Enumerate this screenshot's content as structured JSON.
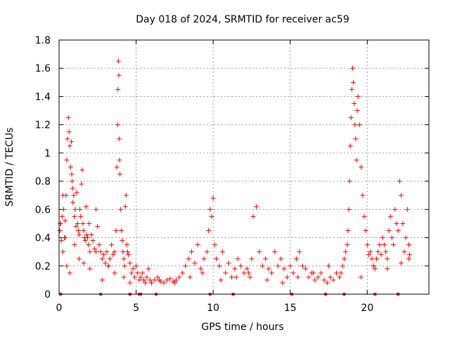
{
  "chart_data": {
    "type": "scatter",
    "title": "Day 018 of 2024, SRMTID for receiver ac59",
    "xlabel": "GPS time / hours",
    "ylabel": "SRMTID / TECUs",
    "xlim": [
      0,
      24
    ],
    "ylim": [
      0,
      1.8
    ],
    "xticks": [
      0,
      5,
      10,
      15,
      20
    ],
    "yticks": [
      0,
      0.2,
      0.4,
      0.6,
      0.8,
      1,
      1.2,
      1.4,
      1.6,
      1.8
    ],
    "ytick_labels": [
      "0",
      "0.2",
      "0.4",
      "0.6",
      "0.8",
      "1",
      "1.2",
      "1.4",
      "1.6",
      "1.8"
    ],
    "grid": true,
    "marker": "+",
    "color": "#ff0000",
    "series": [
      {
        "name": "SRMTID",
        "x": [
          0.05,
          0.1,
          0.15,
          0.2,
          0.25,
          0.3,
          0.35,
          0.4,
          0.45,
          0.5,
          0.55,
          0.6,
          0.65,
          0.7,
          0.75,
          0.8,
          0.82,
          0.85,
          0.88,
          0.9,
          0.95,
          1.0,
          1.05,
          1.1,
          1.15,
          1.2,
          1.25,
          1.3,
          1.35,
          1.4,
          1.45,
          1.5,
          1.55,
          1.6,
          1.65,
          1.7,
          1.75,
          1.8,
          1.85,
          1.9,
          1.95,
          2.0,
          2.1,
          2.2,
          2.3,
          2.4,
          2.5,
          2.6,
          2.7,
          2.8,
          2.9,
          3.0,
          3.1,
          3.2,
          3.3,
          3.4,
          3.5,
          3.6,
          3.7,
          3.75,
          3.8,
          3.82,
          3.85,
          3.88,
          3.9,
          3.92,
          3.95,
          4.0,
          4.05,
          4.1,
          4.15,
          4.2,
          4.25,
          4.3,
          4.35,
          4.4,
          4.45,
          4.5,
          4.6,
          4.7,
          4.8,
          4.9,
          5.0,
          5.1,
          5.2,
          5.3,
          5.4,
          5.5,
          5.6,
          5.7,
          5.8,
          5.9,
          6.0,
          6.2,
          6.4,
          6.6,
          6.8,
          7.0,
          7.2,
          7.4,
          7.6,
          7.8,
          8.0,
          8.2,
          8.4,
          8.6,
          8.8,
          9.0,
          9.2,
          9.4,
          9.6,
          9.7,
          9.8,
          9.9,
          10.0,
          10.1,
          10.2,
          10.4,
          10.6,
          10.8,
          11.0,
          11.2,
          11.4,
          11.6,
          11.8,
          12.0,
          12.2,
          12.4,
          12.5,
          12.6,
          12.8,
          13.0,
          13.2,
          13.4,
          13.6,
          13.8,
          14.0,
          14.2,
          14.4,
          14.6,
          14.8,
          15.0,
          15.2,
          15.4,
          15.6,
          15.8,
          16.0,
          16.2,
          16.4,
          16.6,
          16.8,
          17.0,
          17.2,
          17.4,
          17.6,
          17.8,
          18.0,
          18.2,
          18.4,
          18.5,
          18.6,
          18.7,
          18.75,
          18.8,
          18.85,
          18.9,
          18.95,
          19.0,
          19.05,
          19.1,
          19.15,
          19.2,
          19.25,
          19.3,
          19.35,
          19.4,
          19.5,
          19.6,
          19.7,
          19.8,
          19.9,
          20.0,
          20.1,
          20.2,
          20.3,
          20.4,
          20.5,
          20.6,
          20.7,
          20.8,
          20.9,
          21.0,
          21.1,
          21.2,
          21.3,
          21.4,
          21.5,
          21.6,
          21.7,
          21.8,
          21.9,
          22.0,
          22.1,
          22.2,
          22.3,
          22.4,
          22.5,
          22.6,
          22.7,
          22.75,
          0.08,
          0.25,
          0.4,
          0.5,
          0.7,
          1.0,
          1.3,
          1.6,
          2.0,
          2.4,
          2.8,
          3.2,
          3.6,
          4.2,
          4.6,
          5.5,
          6.5,
          7.5,
          8.5,
          9.3,
          10.5,
          11.5,
          12.3,
          13.5,
          14.5,
          15.5,
          16.5,
          17.5,
          18.3,
          19.6,
          20.4,
          21.3,
          22.2,
          22.7
        ],
        "y": [
          0.45,
          0.5,
          0.38,
          0.55,
          0.3,
          0.6,
          0.4,
          0.52,
          0.7,
          0.95,
          1.1,
          1.25,
          1.15,
          1.05,
          0.9,
          1.08,
          0.85,
          0.8,
          0.75,
          0.65,
          0.7,
          0.55,
          0.6,
          0.48,
          0.72,
          0.5,
          0.45,
          0.42,
          0.6,
          0.55,
          0.78,
          0.88,
          0.5,
          0.45,
          0.4,
          0.38,
          0.62,
          0.42,
          0.4,
          0.35,
          0.5,
          0.3,
          0.42,
          0.38,
          0.32,
          0.6,
          0.48,
          0.35,
          0.3,
          0.25,
          0.28,
          0.22,
          0.3,
          0.2,
          0.25,
          0.35,
          0.28,
          0.3,
          0.45,
          0.9,
          1.2,
          1.45,
          1.65,
          1.55,
          1.1,
          0.95,
          0.85,
          0.6,
          0.45,
          0.38,
          0.3,
          0.25,
          0.2,
          0.62,
          0.7,
          0.35,
          0.3,
          0.28,
          0.22,
          0.15,
          0.18,
          0.12,
          0.2,
          0.15,
          0.1,
          0.12,
          0.15,
          0.1,
          0.08,
          0.12,
          0.18,
          0.1,
          0.08,
          0.1,
          0.12,
          0.09,
          0.08,
          0.1,
          0.11,
          0.09,
          0.1,
          0.12,
          0.15,
          0.2,
          0.25,
          0.3,
          0.22,
          0.35,
          0.18,
          0.25,
          0.3,
          0.45,
          0.6,
          0.55,
          0.68,
          0.35,
          0.25,
          0.2,
          0.3,
          0.15,
          0.22,
          0.12,
          0.18,
          0.25,
          0.2,
          0.15,
          0.18,
          0.12,
          0.25,
          0.55,
          0.62,
          0.3,
          0.2,
          0.25,
          0.18,
          0.15,
          0.3,
          0.2,
          0.25,
          0.18,
          0.12,
          0.2,
          0.15,
          0.25,
          0.3,
          0.2,
          0.18,
          0.12,
          0.15,
          0.1,
          0.12,
          0.15,
          0.1,
          0.08,
          0.12,
          0.1,
          0.15,
          0.12,
          0.2,
          0.25,
          0.3,
          0.35,
          0.45,
          0.6,
          0.8,
          1.05,
          1.25,
          1.45,
          1.6,
          1.5,
          1.35,
          1.2,
          1.1,
          0.95,
          1.3,
          1.4,
          1.2,
          0.9,
          0.7,
          0.55,
          0.45,
          0.35,
          0.28,
          0.3,
          0.25,
          0.2,
          0.18,
          0.25,
          0.3,
          0.35,
          0.28,
          0.4,
          0.35,
          0.3,
          0.25,
          0.45,
          0.55,
          0.4,
          0.35,
          0.6,
          0.5,
          0.45,
          0.8,
          0.7,
          0.5,
          0.3,
          0.4,
          0.6,
          0.35,
          0.28,
          0.5,
          0.7,
          0.4,
          0.2,
          0.15,
          0.35,
          0.25,
          0.22,
          0.18,
          0.3,
          0.1,
          0.2,
          0.15,
          0.12,
          0.08,
          0.1,
          0.1,
          0.08,
          0.12,
          0.15,
          0.1,
          0.12,
          0.15,
          0.1,
          0.08,
          0.12,
          0.15,
          0.2,
          0.15,
          0.12,
          0.2,
          0.18,
          0.22,
          0.25
        ]
      }
    ],
    "zero_markers_x": [
      0.1,
      2.7,
      4.6,
      5.2,
      5.3,
      6.3,
      9.8,
      11.3,
      15.1,
      17.3,
      18.5,
      20.5,
      22.0
    ]
  }
}
